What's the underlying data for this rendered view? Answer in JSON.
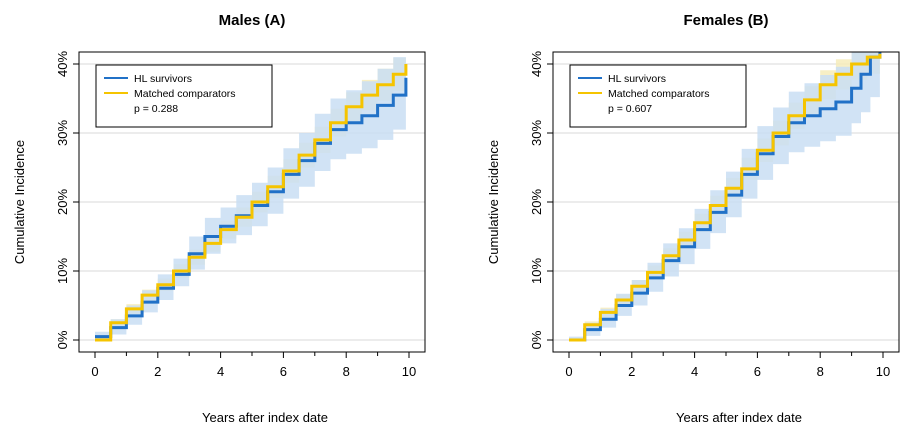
{
  "chart_data": [
    {
      "type": "line",
      "title": "Males (A)",
      "xlabel": "Years after index date",
      "ylabel": "Cumulative Incidence",
      "xlim": [
        0,
        10
      ],
      "ylim": [
        0,
        0.4
      ],
      "x_ticks": [
        0,
        2,
        4,
        6,
        8,
        10
      ],
      "x_tick_labels": [
        "0",
        "2",
        "4",
        "6",
        "8",
        "10"
      ],
      "y_ticks": [
        0,
        0.1,
        0.2,
        0.3,
        0.4
      ],
      "y_tick_labels": [
        "0%",
        "10%",
        "20%",
        "30%",
        "40%"
      ],
      "grid": "horizontal",
      "legend_position": "top-left",
      "p_value_label": "p = 0.288",
      "series": [
        {
          "name": "HL survivors",
          "color": "#2171c7",
          "band_color": "#c9def3",
          "x": [
            0,
            0.5,
            1,
            1.5,
            2,
            2.5,
            3,
            3.5,
            4,
            4.5,
            5,
            5.5,
            6,
            6.5,
            7,
            7.5,
            8,
            8.5,
            9,
            9.5,
            9.9
          ],
          "values": [
            0.005,
            0.018,
            0.035,
            0.055,
            0.075,
            0.095,
            0.125,
            0.15,
            0.165,
            0.18,
            0.195,
            0.215,
            0.24,
            0.26,
            0.285,
            0.305,
            0.315,
            0.325,
            0.34,
            0.355,
            0.38
          ],
          "lower": [
            0.0,
            0.008,
            0.022,
            0.04,
            0.058,
            0.078,
            0.102,
            0.125,
            0.14,
            0.152,
            0.165,
            0.183,
            0.205,
            0.222,
            0.245,
            0.262,
            0.27,
            0.278,
            0.29,
            0.305,
            0.33
          ],
          "upper": [
            0.012,
            0.03,
            0.05,
            0.072,
            0.095,
            0.118,
            0.15,
            0.177,
            0.192,
            0.21,
            0.228,
            0.25,
            0.278,
            0.3,
            0.328,
            0.35,
            0.362,
            0.375,
            0.393,
            0.41,
            0.43
          ]
        },
        {
          "name": "Matched comparators",
          "color": "#f5c400",
          "band_color": "#f6ecbb",
          "x": [
            0,
            0.5,
            1,
            1.5,
            2,
            2.5,
            3,
            3.5,
            4,
            4.5,
            5,
            5.5,
            6,
            6.5,
            7,
            7.5,
            8,
            8.5,
            9,
            9.5,
            9.9
          ],
          "values": [
            0.0,
            0.025,
            0.045,
            0.065,
            0.08,
            0.1,
            0.12,
            0.14,
            0.16,
            0.178,
            0.2,
            0.222,
            0.245,
            0.268,
            0.29,
            0.315,
            0.338,
            0.355,
            0.37,
            0.385,
            0.4
          ],
          "lower": [
            0.0,
            0.02,
            0.038,
            0.057,
            0.071,
            0.09,
            0.109,
            0.128,
            0.147,
            0.164,
            0.185,
            0.206,
            0.228,
            0.25,
            0.271,
            0.295,
            0.317,
            0.333,
            0.347,
            0.361,
            0.375
          ],
          "upper": [
            0.004,
            0.03,
            0.052,
            0.073,
            0.089,
            0.11,
            0.131,
            0.152,
            0.173,
            0.192,
            0.215,
            0.238,
            0.262,
            0.286,
            0.309,
            0.335,
            0.359,
            0.377,
            0.393,
            0.409,
            0.425
          ]
        }
      ]
    },
    {
      "type": "line",
      "title": "Females (B)",
      "xlabel": "Years after index date",
      "ylabel": "Cumulative Incidence",
      "xlim": [
        0,
        10
      ],
      "ylim": [
        0,
        0.4
      ],
      "x_ticks": [
        0,
        2,
        4,
        6,
        8,
        10
      ],
      "x_tick_labels": [
        "0",
        "2",
        "4",
        "6",
        "8",
        "10"
      ],
      "y_ticks": [
        0,
        0.1,
        0.2,
        0.3,
        0.4
      ],
      "y_tick_labels": [
        "0%",
        "10%",
        "20%",
        "30%",
        "40%"
      ],
      "grid": "horizontal",
      "legend_position": "top-left",
      "p_value_label": "p = 0.607",
      "series": [
        {
          "name": "HL survivors",
          "color": "#2171c7",
          "band_color": "#c9def3",
          "x": [
            0,
            0.5,
            1,
            1.5,
            2,
            2.5,
            3,
            3.5,
            4,
            4.5,
            5,
            5.5,
            6,
            6.5,
            7,
            7.5,
            8,
            8.5,
            9,
            9.3,
            9.6,
            9.9
          ],
          "values": [
            0.0,
            0.015,
            0.03,
            0.05,
            0.068,
            0.09,
            0.115,
            0.135,
            0.16,
            0.185,
            0.21,
            0.24,
            0.27,
            0.295,
            0.315,
            0.325,
            0.335,
            0.345,
            0.365,
            0.385,
            0.41,
            0.42
          ],
          "lower": [
            0.0,
            0.006,
            0.018,
            0.035,
            0.05,
            0.07,
            0.092,
            0.11,
            0.132,
            0.155,
            0.178,
            0.205,
            0.232,
            0.255,
            0.272,
            0.28,
            0.288,
            0.296,
            0.314,
            0.33,
            0.352,
            0.36
          ],
          "upper": [
            0.005,
            0.025,
            0.045,
            0.067,
            0.087,
            0.112,
            0.14,
            0.162,
            0.19,
            0.217,
            0.244,
            0.277,
            0.31,
            0.337,
            0.36,
            0.372,
            0.384,
            0.396,
            0.418,
            0.44,
            0.468,
            0.48
          ]
        },
        {
          "name": "Matched comparators",
          "color": "#f5c400",
          "band_color": "#f6ecbb",
          "x": [
            0,
            0.5,
            1,
            1.5,
            2,
            2.5,
            3,
            3.5,
            4,
            4.5,
            5,
            5.5,
            6,
            6.5,
            7,
            7.5,
            8,
            8.5,
            9,
            9.5,
            9.9
          ],
          "values": [
            0.0,
            0.022,
            0.04,
            0.058,
            0.078,
            0.098,
            0.122,
            0.145,
            0.17,
            0.195,
            0.22,
            0.248,
            0.275,
            0.3,
            0.325,
            0.348,
            0.37,
            0.385,
            0.4,
            0.41,
            0.415
          ],
          "lower": [
            0.0,
            0.017,
            0.033,
            0.05,
            0.069,
            0.088,
            0.111,
            0.133,
            0.157,
            0.181,
            0.205,
            0.232,
            0.258,
            0.282,
            0.306,
            0.328,
            0.349,
            0.363,
            0.377,
            0.386,
            0.39
          ],
          "upper": [
            0.003,
            0.027,
            0.047,
            0.066,
            0.087,
            0.108,
            0.133,
            0.157,
            0.183,
            0.209,
            0.235,
            0.264,
            0.292,
            0.318,
            0.344,
            0.368,
            0.391,
            0.407,
            0.423,
            0.434,
            0.44
          ]
        }
      ]
    }
  ]
}
